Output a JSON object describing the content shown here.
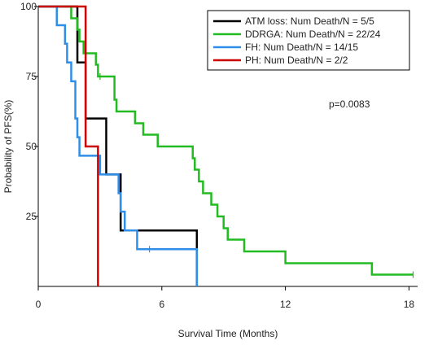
{
  "chart_data": {
    "type": "line",
    "subtype": "kaplan-meier step",
    "xlabel": "Survival Time (Months)",
    "ylabel": "Probability of PFS(%)",
    "xlim": [
      0,
      18.5
    ],
    "ylim": [
      0,
      100
    ],
    "x_ticks": [
      0,
      6,
      12,
      18
    ],
    "y_ticks": [
      25,
      50,
      75,
      100
    ],
    "grid": false,
    "legend_position": "top-right",
    "annotation": "p=0.0083",
    "series": [
      {
        "name": "ATM loss: Num Death/N = 5/5",
        "color": "#000000",
        "steps": [
          [
            0,
            100
          ],
          [
            1.9,
            80
          ],
          [
            2.3,
            60
          ],
          [
            3.3,
            40
          ],
          [
            4.0,
            20
          ],
          [
            7.7,
            0
          ]
        ],
        "end_x": 7.7,
        "censored": []
      },
      {
        "name": "DDRGA: Num Death/N = 22/24",
        "color": "#22bb22",
        "steps": [
          [
            0,
            100
          ],
          [
            1.6,
            95.8
          ],
          [
            1.9,
            91.7
          ],
          [
            2.0,
            87.5
          ],
          [
            2.2,
            83.3
          ],
          [
            2.8,
            79.2
          ],
          [
            2.9,
            75
          ],
          [
            3.7,
            66.7
          ],
          [
            3.8,
            62.5
          ],
          [
            4.7,
            58.3
          ],
          [
            5.1,
            54.2
          ],
          [
            5.8,
            50
          ],
          [
            7.5,
            45.8
          ],
          [
            7.6,
            41.7
          ],
          [
            7.8,
            37.5
          ],
          [
            8.0,
            33.3
          ],
          [
            8.4,
            29.2
          ],
          [
            8.7,
            25
          ],
          [
            9.0,
            20.8
          ],
          [
            9.2,
            16.7
          ],
          [
            10.0,
            12.5
          ],
          [
            12.0,
            8.3
          ],
          [
            16.2,
            4.2
          ]
        ],
        "end_x": 18.2,
        "censored": [
          [
            3.0,
            75
          ],
          [
            18.2,
            4.2
          ]
        ]
      },
      {
        "name": "FH: Num Death/N = 14/15",
        "color": "#2f8fe8",
        "steps": [
          [
            0,
            100
          ],
          [
            0.9,
            93.3
          ],
          [
            1.3,
            86.7
          ],
          [
            1.4,
            80
          ],
          [
            1.6,
            73.3
          ],
          [
            1.8,
            60
          ],
          [
            1.9,
            53.3
          ],
          [
            2.0,
            46.7
          ],
          [
            3.0,
            40
          ],
          [
            3.9,
            33.3
          ],
          [
            4.0,
            26.7
          ],
          [
            4.2,
            20
          ],
          [
            4.8,
            13.3
          ],
          [
            7.7,
            0
          ]
        ],
        "end_x": 7.7,
        "censored": [
          [
            5.4,
            13.3
          ]
        ]
      },
      {
        "name": "PH: Num Death/N = 2/2",
        "color": "#cc0000",
        "steps": [
          [
            0,
            100
          ],
          [
            2.3,
            50
          ],
          [
            2.9,
            0
          ]
        ],
        "end_x": 2.9,
        "censored": []
      }
    ]
  }
}
